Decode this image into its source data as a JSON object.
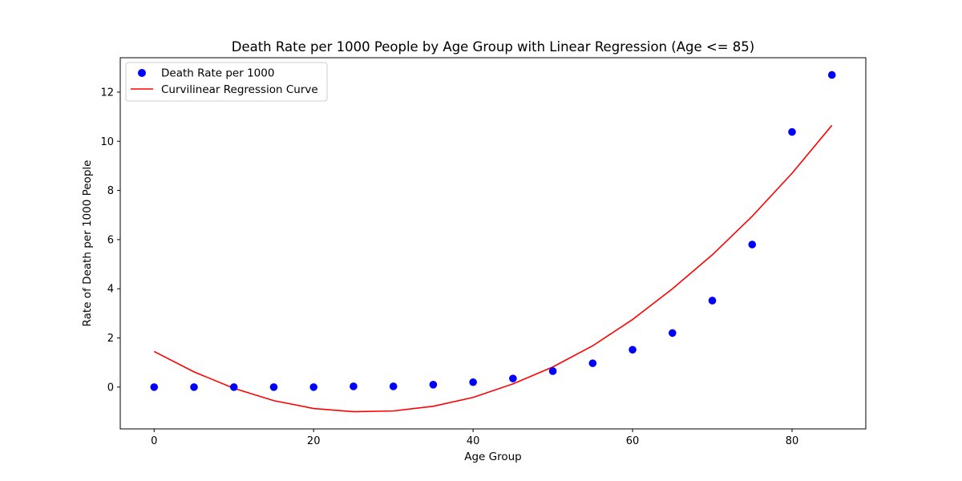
{
  "chart_data": {
    "type": "scatter",
    "title": "Death Rate per 1000 People by Age Group with Linear Regression (Age <= 85)",
    "xlabel": "Age Group",
    "ylabel": "Rate of Death per 1000 People",
    "xlim": [
      -4.25,
      89.25
    ],
    "ylim": [
      -1.7,
      13.4
    ],
    "xticks": [
      0,
      20,
      40,
      60,
      80
    ],
    "yticks": [
      0,
      2,
      4,
      6,
      8,
      10,
      12
    ],
    "grid": false,
    "legend_position": "top-left",
    "series": [
      {
        "name": "Death Rate per 1000",
        "type": "scatter",
        "color": "#0000ff",
        "x": [
          0,
          5,
          10,
          15,
          20,
          25,
          30,
          35,
          40,
          45,
          50,
          55,
          60,
          65,
          70,
          75,
          80,
          85
        ],
        "y": [
          0.0,
          0.0,
          0.0,
          0.0,
          0.0,
          0.03,
          0.03,
          0.1,
          0.2,
          0.35,
          0.65,
          0.97,
          1.52,
          2.2,
          3.52,
          5.8,
          10.38,
          12.7
        ]
      },
      {
        "name": "Curvilinear Regression Curve",
        "type": "line",
        "color": "#ff0000",
        "x": [
          0,
          5,
          10,
          15,
          20,
          25,
          30,
          35,
          40,
          45,
          50,
          55,
          60,
          65,
          70,
          75,
          80,
          85
        ],
        "y": [
          1.45,
          0.62,
          -0.05,
          -0.55,
          -0.87,
          -1.0,
          -0.97,
          -0.78,
          -0.42,
          0.13,
          0.82,
          1.68,
          2.75,
          4.0,
          5.38,
          6.95,
          8.7,
          10.65
        ]
      }
    ]
  }
}
